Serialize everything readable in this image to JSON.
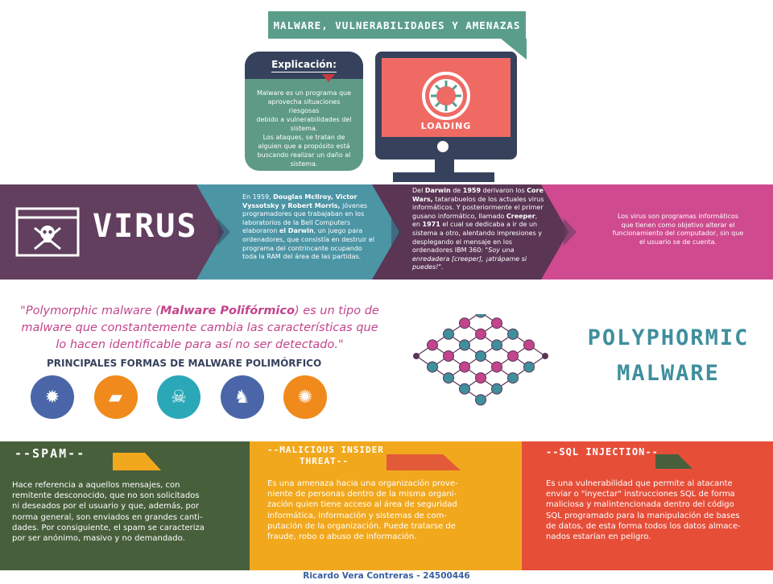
{
  "header": {
    "title": "MALWARE, VULNERABILIDADES Y AMENAZAS"
  },
  "explanation": {
    "title": "Explicación:",
    "lines": [
      "Malware es un programa que",
      "aprovecha situaciones riesgosas",
      "debido a vulnerabilidades del",
      "sistema.",
      "Los ataques, se tratan de",
      "alguien que a propósito está",
      "buscando realizar un daño al",
      "sistema."
    ]
  },
  "monitor": {
    "loading": "LOADING"
  },
  "virus": {
    "title": "VIRUS",
    "col1": [
      [
        {
          "t": "En 1959, "
        },
        {
          "t": "Douglas McIlroy, Victor",
          "b": true
        }
      ],
      [
        {
          "t": "Vyssotsky y Robert Morris,",
          "b": true
        },
        {
          "t": " jóvenes"
        }
      ],
      [
        {
          "t": "programadores que trabajaban en los"
        }
      ],
      [
        {
          "t": "laboratorios de la Bell Computers"
        }
      ],
      [
        {
          "t": "elaboraron "
        },
        {
          "t": "el Darwin",
          "b": true
        },
        {
          "t": ", un juego para"
        }
      ],
      [
        {
          "t": "ordenadores, que consistía en destruir el"
        }
      ],
      [
        {
          "t": "programa del contrincante ocupando"
        }
      ],
      [
        {
          "t": "toda la RAM del área de las partidas."
        }
      ]
    ],
    "col2": [
      [
        {
          "t": "Del "
        },
        {
          "t": "Darwin",
          "b": true
        },
        {
          "t": " de "
        },
        {
          "t": "1959",
          "b": true
        },
        {
          "t": " derivaron los "
        },
        {
          "t": "Core",
          "b": true
        }
      ],
      [
        {
          "t": "Wars,",
          "b": true
        },
        {
          "t": " tatarabuelos de los actuales virus"
        }
      ],
      [
        {
          "t": "informáticos. Y posteriormente el primer"
        }
      ],
      [
        {
          "t": "gusano informático, llamado "
        },
        {
          "t": "Creeper",
          "b": true
        },
        {
          "t": ","
        }
      ],
      [
        {
          "t": "en "
        },
        {
          "t": "1971",
          "b": true
        },
        {
          "t": " el cual se dedicaba a ir de un"
        }
      ],
      [
        {
          "t": "sistema a otro, alentando impresiones y"
        }
      ],
      [
        {
          "t": "desplegando el mensaje en los"
        }
      ],
      [
        {
          "t": "ordenadores IBM 360: "
        },
        {
          "t": "\"Soy una",
          "i": true
        }
      ],
      [
        {
          "t": "enredadera [creeper], ¡atrápame si",
          "i": true
        }
      ],
      [
        {
          "t": "puedes!\".",
          "i": true
        }
      ]
    ],
    "col3": [
      "Los virus son programas informáticos",
      "que tienen como objetivo alterar el",
      "funcionamiento del computador, sin que",
      "el usuario se de cuenta."
    ]
  },
  "poly": {
    "quote_lines": [
      [
        {
          "t": "\"Polymorphic malware ("
        },
        {
          "t": "Malware Polifórmico",
          "b": true
        },
        {
          "t": ") es un tipo de"
        }
      ],
      [
        {
          "t": "malware que constantemente cambia las características que"
        }
      ],
      [
        {
          "t": "lo hacen identificable para así no ser detectado.\""
        }
      ]
    ],
    "subtitle": "PRINCIPALES FORMAS DE MALWARE POLIMÓRFICO",
    "title_lines": [
      "POLYPHORMIC",
      "MALWARE"
    ],
    "icons": [
      {
        "name": "bug-icon",
        "glyph": "✹",
        "color": "#4a66a8"
      },
      {
        "name": "folder-icon",
        "glyph": "▰",
        "color": "#f08a1c"
      },
      {
        "name": "skull-icon",
        "glyph": "☠",
        "color": "#2aa8b8"
      },
      {
        "name": "trojan-horse-icon",
        "glyph": "♞",
        "color": "#4a66a8"
      },
      {
        "name": "laptop-malware-icon",
        "glyph": "✺",
        "color": "#f08a1c"
      }
    ]
  },
  "cards": {
    "spam": {
      "title": "--SPAM--",
      "lines": [
        "Hace referencia a aquellos mensajes, con",
        "remitente  desconocido, que no son solicitados",
        "ni deseados por el usuario y que, además, por",
        "norma general, son enviados en grandes canti-",
        "dades. Por consiguiente, el spam se caracteriza",
        "por ser anónimo, masivo y no demandado."
      ]
    },
    "insider": {
      "title_lines": [
        "--MALICIOUS INSIDER",
        "THREAT--"
      ],
      "lines": [
        "Es una amenaza hacia una organización prove-",
        "niente de personas dentro de la misma organi-",
        "zación quien tiene acceso al área de seguridad",
        "informática, información y sistemas de com-",
        "putación de la organización. Puede tratarse de",
        "fraude, robo o abuso de información."
      ]
    },
    "sql": {
      "title": "--SQL INJECTION--",
      "lines": [
        "Es una vulnerabilidad que permite al atacante",
        "enviar o \"inyectar\" instrucciones SQL de forma",
        "maliciosa y malintencionada dentro del código",
        "SQL programado para la manipulación de bases",
        "de datos, de esta forma todos los datos almace-",
        "nados estarían en peligro."
      ]
    }
  },
  "footer": {
    "author": "Ricardo Vera Contreras - 24500446"
  }
}
